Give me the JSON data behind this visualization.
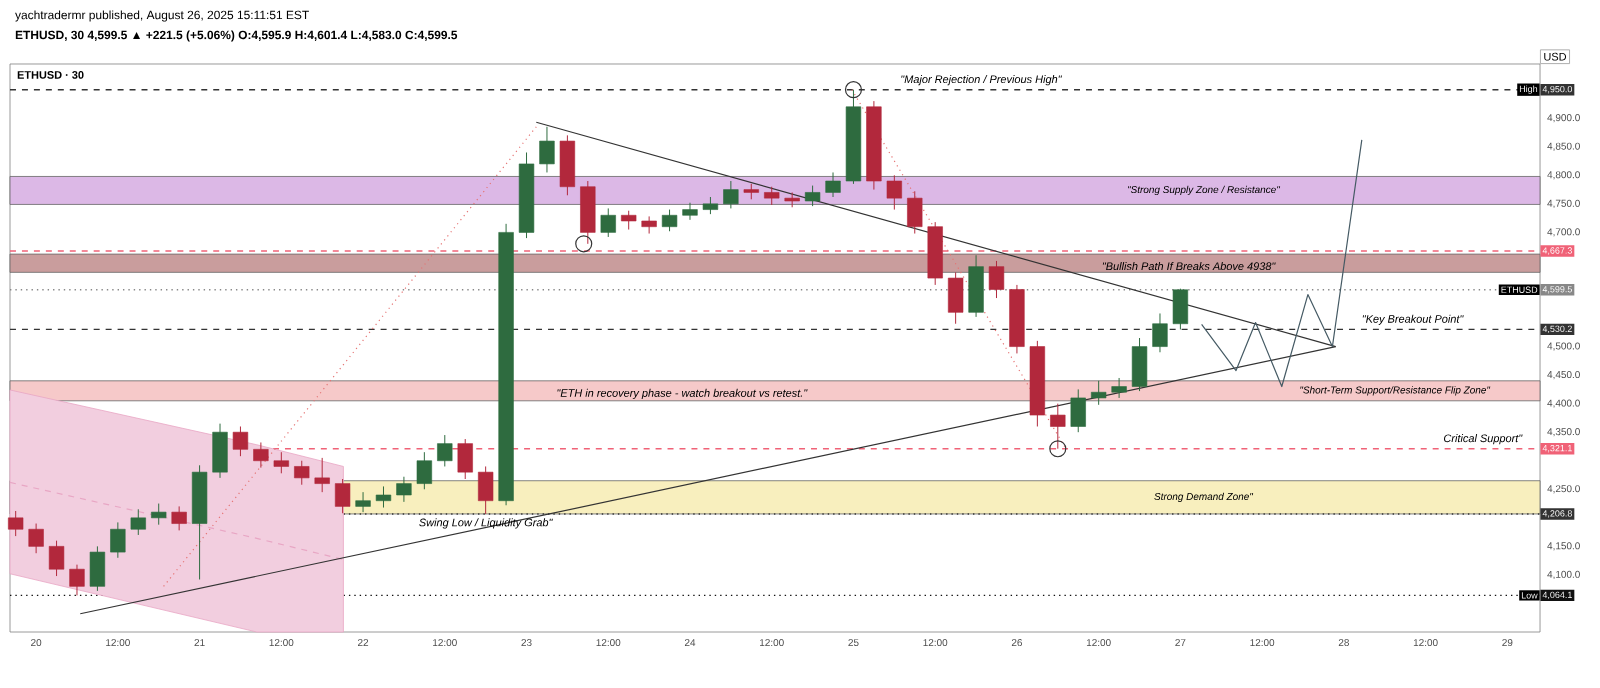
{
  "chart_data": {
    "type": "candlestick",
    "title": "ETHUSD · 30",
    "subtitle": "yachtradermr published, August 26, 2025 15:11:51 EST",
    "ylabel": "USD",
    "annotations": [
      "ETHUSD, 30 4,599.5 ▲ +221.5 (+5.06%) O:4,595.9 H:4,601.4 L:4,583.0 C:4,599.5",
      {
        "text": "\"Major Rejection / Previous High\"",
        "x": "2025-08-25T18:43",
        "y": 4950
      },
      {
        "text": "\"Bullish Path If Breaks Above 4938\"",
        "x": "2025-08-27T01:12",
        "y": 4641
      },
      {
        "text": "\"Key Breakout Point\"",
        "x": "2025-08-28T10:05",
        "y": 4530.2
      },
      {
        "text": "\"ETH in recovery phase - watch breakout vs retest.\"",
        "x": "2025-08-23T22:48",
        "y": 4417
      },
      {
        "text": "Critical Support\"",
        "x": "2025-08-28T20:24",
        "y": 4321.1
      },
      {
        "text": "Swing Low / Liquidity Grab\"",
        "x": "2025-08-22T18:00",
        "y": 4206.8
      },
      {
        "text": "High",
        "y": 4950
      },
      {
        "text": "Low",
        "y": 4064.1
      },
      {
        "text": "ETHUSD",
        "y": 4599.5
      }
    ],
    "x": [
      "2025-08-19T21:00",
      "2025-08-20T00:00",
      "2025-08-20T03:00",
      "2025-08-20T06:00",
      "2025-08-20T09:00",
      "2025-08-20T12:00",
      "2025-08-20T15:00",
      "2025-08-20T18:00",
      "2025-08-20T21:00",
      "2025-08-21T00:00",
      "2025-08-21T03:00",
      "2025-08-21T06:00",
      "2025-08-21T09:00",
      "2025-08-21T12:00",
      "2025-08-21T15:00",
      "2025-08-21T18:00",
      "2025-08-21T21:00",
      "2025-08-22T00:00",
      "2025-08-22T03:00",
      "2025-08-22T06:00",
      "2025-08-22T09:00",
      "2025-08-22T12:00",
      "2025-08-22T15:00",
      "2025-08-22T18:00",
      "2025-08-22T21:00",
      "2025-08-23T00:00",
      "2025-08-23T03:00",
      "2025-08-23T06:00",
      "2025-08-23T09:00",
      "2025-08-23T12:00",
      "2025-08-23T15:00",
      "2025-08-23T18:00",
      "2025-08-23T21:00",
      "2025-08-24T00:00",
      "2025-08-24T03:00",
      "2025-08-24T06:00",
      "2025-08-24T09:00",
      "2025-08-24T12:00",
      "2025-08-24T15:00",
      "2025-08-24T18:00",
      "2025-08-24T21:00",
      "2025-08-25T00:00",
      "2025-08-25T03:00",
      "2025-08-25T06:00",
      "2025-08-25T09:00",
      "2025-08-25T12:00",
      "2025-08-25T15:00",
      "2025-08-25T18:00",
      "2025-08-25T21:00",
      "2025-08-26T00:00",
      "2025-08-26T03:00",
      "2025-08-26T06:00",
      "2025-08-26T09:00",
      "2025-08-26T12:00",
      "2025-08-26T15:00",
      "2025-08-26T18:00",
      "2025-08-26T21:00",
      "2025-08-27T00:00"
    ],
    "ohlc": [
      [
        4200,
        4212,
        4168,
        4180
      ],
      [
        4180,
        4190,
        4138,
        4150
      ],
      [
        4150,
        4160,
        4098,
        4110
      ],
      [
        4110,
        4118,
        4064.1,
        4080
      ],
      [
        4080,
        4150,
        4072,
        4140
      ],
      [
        4140,
        4192,
        4130,
        4180
      ],
      [
        4180,
        4215,
        4170,
        4200
      ],
      [
        4200,
        4225,
        4188,
        4210
      ],
      [
        4210,
        4220,
        4178,
        4190
      ],
      [
        4190,
        4292,
        4092,
        4280
      ],
      [
        4280,
        4365,
        4270,
        4350
      ],
      [
        4350,
        4360,
        4308,
        4320
      ],
      [
        4320,
        4332,
        4288,
        4300
      ],
      [
        4300,
        4315,
        4278,
        4290
      ],
      [
        4290,
        4300,
        4258,
        4270
      ],
      [
        4270,
        4305,
        4245,
        4260
      ],
      [
        4260,
        4268,
        4208,
        4220
      ],
      [
        4220,
        4245,
        4210,
        4230
      ],
      [
        4230,
        4255,
        4218,
        4240
      ],
      [
        4240,
        4272,
        4228,
        4260
      ],
      [
        4260,
        4315,
        4250,
        4300
      ],
      [
        4300,
        4345,
        4290,
        4330
      ],
      [
        4330,
        4338,
        4268,
        4280
      ],
      [
        4280,
        4290,
        4206.8,
        4230
      ],
      [
        4230,
        4715,
        4222,
        4700
      ],
      [
        4700,
        4840,
        4690,
        4820
      ],
      [
        4820,
        4885,
        4805,
        4860
      ],
      [
        4860,
        4870,
        4765,
        4780
      ],
      [
        4780,
        4790,
        4680,
        4700
      ],
      [
        4700,
        4742,
        4692,
        4730
      ],
      [
        4730,
        4738,
        4705,
        4720
      ],
      [
        4720,
        4728,
        4698,
        4710
      ],
      [
        4710,
        4740,
        4702,
        4730
      ],
      [
        4730,
        4752,
        4722,
        4740
      ],
      [
        4740,
        4762,
        4732,
        4750
      ],
      [
        4750,
        4790,
        4742,
        4775
      ],
      [
        4775,
        4785,
        4758,
        4770
      ],
      [
        4770,
        4780,
        4748,
        4760
      ],
      [
        4760,
        4770,
        4744,
        4755
      ],
      [
        4755,
        4782,
        4746,
        4770
      ],
      [
        4770,
        4805,
        4762,
        4790
      ],
      [
        4790,
        4950,
        4785,
        4920
      ],
      [
        4920,
        4930,
        4775,
        4790
      ],
      [
        4790,
        4800,
        4740,
        4760
      ],
      [
        4760,
        4772,
        4698,
        4710
      ],
      [
        4710,
        4718,
        4608,
        4620
      ],
      [
        4620,
        4630,
        4540,
        4560
      ],
      [
        4560,
        4660,
        4552,
        4640
      ],
      [
        4640,
        4650,
        4585,
        4600
      ],
      [
        4600,
        4608,
        4488,
        4500
      ],
      [
        4500,
        4510,
        4360,
        4380
      ],
      [
        4380,
        4400,
        4321.1,
        4360
      ],
      [
        4360,
        4425,
        4350,
        4410
      ],
      [
        4410,
        4440,
        4398,
        4420
      ],
      [
        4420,
        4445,
        4410,
        4430
      ],
      [
        4430,
        4515,
        4422,
        4500
      ],
      [
        4500,
        4558,
        4490,
        4540
      ],
      [
        4540,
        4601.4,
        4530,
        4599.5
      ]
    ],
    "colors": [
      "#b2283c",
      "#b2283c",
      "#b2283c",
      "#b2283c",
      "#2e6b3f",
      "#2e6b3f",
      "#2e6b3f",
      "#2e6b3f",
      "#b2283c",
      "#2e6b3f",
      "#2e6b3f",
      "#b2283c",
      "#b2283c",
      "#b2283c",
      "#b2283c",
      "#b2283c",
      "#b2283c",
      "#2e6b3f",
      "#2e6b3f",
      "#2e6b3f",
      "#2e6b3f",
      "#2e6b3f",
      "#b2283c",
      "#b2283c",
      "#2e6b3f",
      "#2e6b3f",
      "#2e6b3f",
      "#b2283c",
      "#b2283c",
      "#2e6b3f",
      "#b2283c",
      "#b2283c",
      "#2e6b3f",
      "#2e6b3f",
      "#2e6b3f",
      "#2e6b3f",
      "#b2283c",
      "#b2283c",
      "#b2283c",
      "#2e6b3f",
      "#2e6b3f",
      "#2e6b3f",
      "#b2283c",
      "#b2283c",
      "#b2283c",
      "#b2283c",
      "#b2283c",
      "#2e6b3f",
      "#b2283c",
      "#b2283c",
      "#b2283c",
      "#b2283c",
      "#2e6b3f",
      "#2e6b3f",
      "#2e6b3f",
      "#2e6b3f",
      "#2e6b3f",
      "#2e6b3f"
    ],
    "series": [
      {
        "type": "line",
        "color": "#e8a6c4",
        "line_style": "dashed",
        "x": [
          "2025-08-19T20:10",
          "2025-08-21T08:24",
          "2025-08-21T21:07"
        ],
        "values": [
          4262,
          4164,
          4127
        ],
        "lower": [
          4102,
          4000,
          4000
        ],
        "upper": [
          4424,
          4328,
          4290
        ]
      },
      {
        "type": "line",
        "color": "#333333",
        "x": [
          "2025-08-23T01:26",
          "2025-08-27T22:48"
        ],
        "values": [
          4893,
          4500
        ]
      },
      {
        "type": "line",
        "color": "#333333",
        "x": [
          "2025-08-20T06:29",
          "2025-08-27T22:48"
        ],
        "values": [
          4032,
          4500
        ]
      },
      {
        "type": "line",
        "color": "#e57373",
        "line_style": "dotted",
        "x": [
          "2025-08-20T18:43",
          "2025-08-23T01:26"
        ],
        "values": [
          4080,
          4885
        ]
      },
      {
        "type": "line",
        "color": "#e57373",
        "line_style": "dotted",
        "x": [
          "2025-08-24T23:46",
          "2025-08-26T07:12"
        ],
        "values": [
          4950,
          4321
        ]
      },
      {
        "type": "line",
        "color": "#455a64",
        "x": [
          "2025-08-27T03:07",
          "2025-08-27T08:10",
          "2025-08-27T11:02",
          "2025-08-27T14:53",
          "2025-08-27T18:43",
          "2025-08-27T22:19",
          "2025-08-28T02:38"
        ],
        "values": [
          4539,
          4458,
          4542,
          4430,
          4591,
          4500,
          4862
        ]
      },
      {
        "type": "scatter",
        "color": "#333333",
        "marker": "circle",
        "x": [
          "2025-08-23T08:24",
          "2025-08-25T00:00",
          "2025-08-26T06:00"
        ],
        "values": [
          4680,
          4950,
          4321
        ]
      }
    ],
    "bands": [
      {
        "axis": "y",
        "from": 4749,
        "to": 4798,
        "label": "\"Strong Supply Zone / Resistance\"",
        "color": "#dcb8e6"
      },
      {
        "axis": "y",
        "from": 4630,
        "to": 4662,
        "color": "#c99d9d"
      },
      {
        "axis": "y",
        "from": 4206.8,
        "to": 4265,
        "label": "Strong Demand Zone\"",
        "color": "#f8efbe"
      },
      {
        "axis": "y",
        "from": 4405,
        "to": 4440,
        "label": "\"Short-Term Support/Resistance Flip Zone\"",
        "color": "#f6c9c9"
      }
    ],
    "ref_lines": [
      {
        "axis": "y",
        "value": 4950,
        "label": "4,950.0",
        "color": "#333333",
        "line_style": "dashed"
      },
      {
        "axis": "y",
        "value": 4667.3,
        "label": "4,667.3",
        "color": "#f06277",
        "line_style": "dashed"
      },
      {
        "axis": "y",
        "value": 4599.5,
        "label": "4,599.5",
        "color": "#888888",
        "line_style": "dotted"
      },
      {
        "axis": "y",
        "value": 4530.2,
        "label": "4,530.2",
        "color": "#333333",
        "line_style": "dashed"
      },
      {
        "axis": "y",
        "value": 4321.1,
        "label": "4,321.1",
        "color": "#f06277",
        "line_style": "dashed"
      },
      {
        "axis": "y",
        "value": 4206.8,
        "label": "4,206.8",
        "color": "#333333",
        "line_style": "dotted"
      },
      {
        "axis": "y",
        "value": 4064.1,
        "label": "4,064.1",
        "color": "#111111",
        "line_style": "dotted"
      }
    ],
    "xlim": [
      "2025-08-19T20:10",
      "2025-08-29T04:48"
    ],
    "ylim": [
      4000,
      4995
    ],
    "xticks": [
      {
        "value": "2025-08-20",
        "label": "20"
      },
      {
        "value": "2025-08-20T12:00",
        "label": "12:00"
      },
      {
        "value": "2025-08-21",
        "label": "21"
      },
      {
        "value": "2025-08-21T12:00",
        "label": "12:00"
      },
      {
        "value": "2025-08-22",
        "label": "22"
      },
      {
        "value": "2025-08-22T12:00",
        "label": "12:00"
      },
      {
        "value": "2025-08-23",
        "label": "23"
      },
      {
        "value": "2025-08-23T12:00",
        "label": "12:00"
      },
      {
        "value": "2025-08-24",
        "label": "24"
      },
      {
        "value": "2025-08-24T12:00",
        "label": "12:00"
      },
      {
        "value": "2025-08-25",
        "label": "25"
      },
      {
        "value": "2025-08-25T12:00",
        "label": "12:00"
      },
      {
        "value": "2025-08-26",
        "label": "26"
      },
      {
        "value": "2025-08-26T12:00",
        "label": "12:00"
      },
      {
        "value": "2025-08-27",
        "label": "27"
      },
      {
        "value": "2025-08-27T12:00",
        "label": "12:00"
      },
      {
        "value": "2025-08-28",
        "label": "28"
      },
      {
        "value": "2025-08-28T12:00",
        "label": "12:00"
      },
      {
        "value": "2025-08-29",
        "label": "29"
      }
    ],
    "yticks": [
      {
        "value": 4100,
        "label": "4,100.0"
      },
      {
        "value": 4150,
        "label": "4,150.0"
      },
      {
        "value": 4250,
        "label": "4,250.0"
      },
      {
        "value": 4350,
        "label": "4,350.0"
      },
      {
        "value": 4400,
        "label": "4,400.0"
      },
      {
        "value": 4450,
        "label": "4,450.0"
      },
      {
        "value": 4500,
        "label": "4,500.0"
      },
      {
        "value": 4700,
        "label": "4,700.0"
      },
      {
        "value": 4750,
        "label": "4,750.0"
      },
      {
        "value": 4800,
        "label": "4,800.0"
      },
      {
        "value": 4850,
        "label": "4,850.0"
      },
      {
        "value": 4900,
        "label": "4,900.0"
      }
    ]
  }
}
